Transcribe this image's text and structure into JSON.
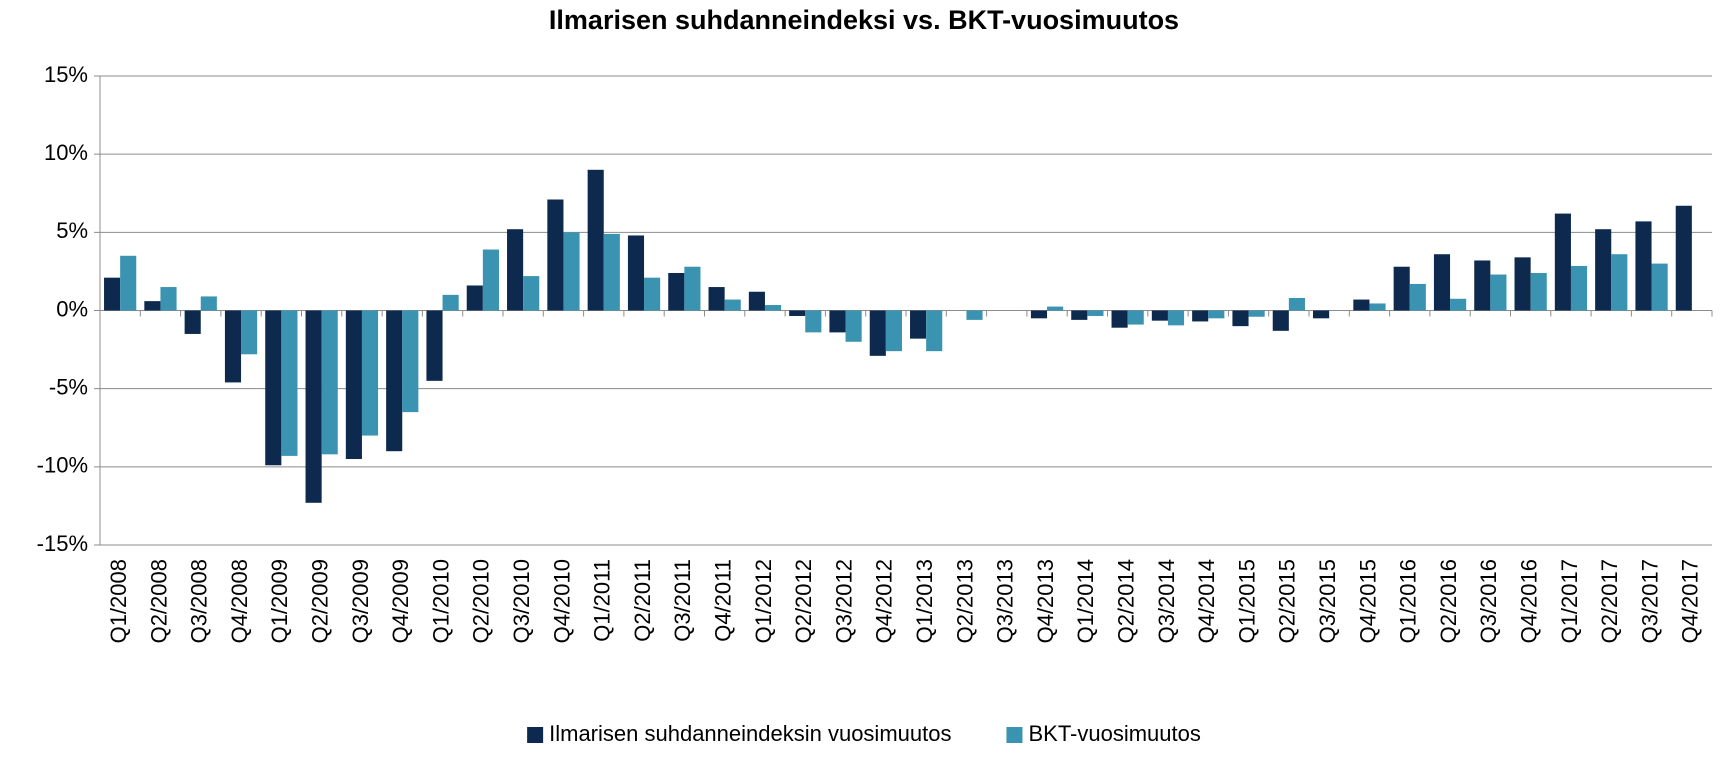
{
  "chart_data": {
    "type": "bar",
    "title": "Ilmarisen suhdanneindeksi vs. BKT-vuosimuutos",
    "categories": [
      "Q1/2008",
      "Q2/2008",
      "Q3/2008",
      "Q4/2008",
      "Q1/2009",
      "Q2/2009",
      "Q3/2009",
      "Q4/2009",
      "Q1/2010",
      "Q2/2010",
      "Q3/2010",
      "Q4/2010",
      "Q1/2011",
      "Q2/2011",
      "Q3/2011",
      "Q4/2011",
      "Q1/2012",
      "Q2/2012",
      "Q3/2012",
      "Q4/2012",
      "Q1/2013",
      "Q2/2013",
      "Q3/2013",
      "Q4/2013",
      "Q1/2014",
      "Q2/2014",
      "Q3/2014",
      "Q4/2014",
      "Q1/2015",
      "Q2/2015",
      "Q3/2015",
      "Q4/2015",
      "Q1/2016",
      "Q2/2016",
      "Q3/2016",
      "Q4/2016",
      "Q1/2017",
      "Q2/2017",
      "Q3/2017",
      "Q4/2017"
    ],
    "series": [
      {
        "name": "Ilmarisen suhdanneindeksin vuosimuutos",
        "color": "#0d2a4e",
        "values": [
          2.1,
          0.6,
          -1.5,
          -4.6,
          -9.9,
          -12.3,
          -9.5,
          -9.0,
          -4.5,
          1.6,
          5.2,
          7.1,
          9.0,
          4.8,
          2.4,
          1.5,
          1.2,
          -0.35,
          -1.4,
          -2.9,
          -1.8,
          0,
          0,
          -0.5,
          -0.6,
          -1.1,
          -0.65,
          -0.7,
          -1.0,
          -1.3,
          -0.5,
          0.7,
          2.8,
          3.6,
          3.2,
          3.4,
          6.2,
          5.2,
          5.7,
          6.7
        ]
      },
      {
        "name": "BKT-vuosimuutos",
        "color": "#3a93b0",
        "values": [
          3.5,
          1.5,
          0.9,
          -2.8,
          -9.3,
          -9.2,
          -8.0,
          -6.5,
          1.0,
          3.9,
          2.2,
          5.0,
          4.9,
          2.1,
          2.8,
          0.7,
          0.35,
          -1.4,
          -2.0,
          -2.6,
          -2.6,
          -0.6,
          0,
          0.25,
          -0.35,
          -0.9,
          -0.95,
          -0.5,
          -0.4,
          0.8,
          0,
          0.45,
          1.7,
          0.75,
          2.3,
          2.4,
          2.85,
          3.6,
          3.0,
          null
        ]
      }
    ],
    "ylim": [
      -15,
      15
    ],
    "yticks": [
      {
        "value": -15,
        "label": "-15%"
      },
      {
        "value": -10,
        "label": "-10%"
      },
      {
        "value": -5,
        "label": "-5%"
      },
      {
        "value": 0,
        "label": "0%"
      },
      {
        "value": 5,
        "label": "5%"
      },
      {
        "value": 10,
        "label": "10%"
      },
      {
        "value": 15,
        "label": "15%"
      }
    ],
    "grid": true
  }
}
